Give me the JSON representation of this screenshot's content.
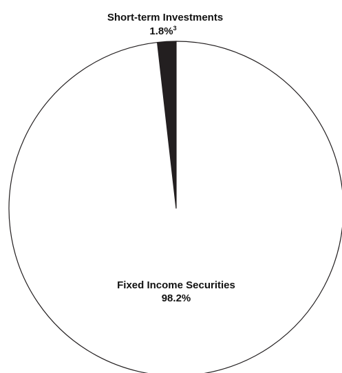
{
  "chart_data": {
    "type": "pie",
    "slices": [
      {
        "label": "Fixed Income Securities",
        "value_label": "98.2%",
        "value": 98.2,
        "color": "#ffffff"
      },
      {
        "label": "Short-term Investments",
        "value_label": "1.8%",
        "footnote": "3",
        "value": 1.8,
        "color": "#231f20"
      }
    ],
    "outline_color": "#231f20"
  }
}
